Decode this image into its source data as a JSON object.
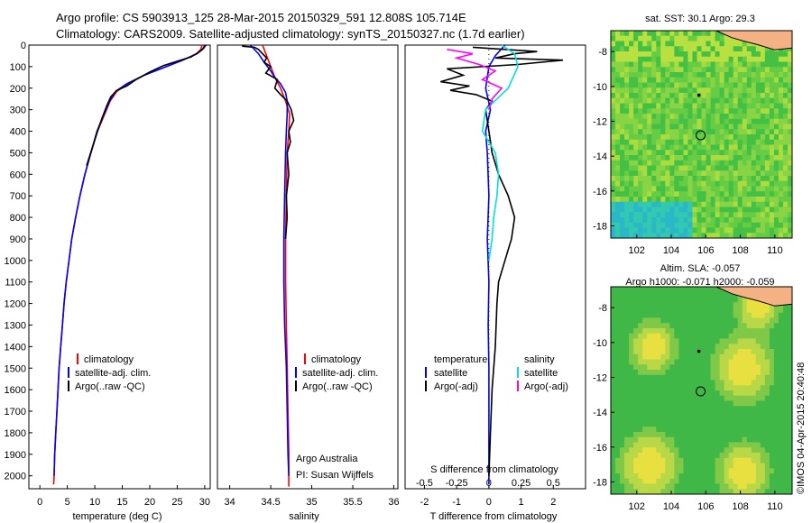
{
  "header": {
    "line1": "Argo profile: CS 5903913_125 28-Mar-2015 20150329_591 12.808S 105.714E",
    "line2": "Climatology: CARS2009. Satellite-adjusted climatology: synTS_20150327.nc (1.7d earlier)"
  },
  "colors": {
    "climatology": "#ff0000",
    "satellite": "#0000ff",
    "argo": "#000000",
    "salinity_satellite": "#00e0e0",
    "salinity_argo": "#ff00ff",
    "land": "#f4b183",
    "sst_sea": "#55c855",
    "sla_sea": "#40c060"
  },
  "depth_axis": {
    "ticks": [
      0,
      100,
      200,
      300,
      400,
      500,
      600,
      700,
      800,
      900,
      1000,
      1100,
      1200,
      1300,
      1400,
      1500,
      1600,
      1700,
      1800,
      1900,
      2000
    ],
    "ylim": [
      0,
      2060
    ]
  },
  "chart_data": [
    {
      "id": "temperature",
      "type": "line",
      "xlabel": "temperature (deg C)",
      "xticks": [
        0,
        5,
        10,
        15,
        20,
        25,
        30
      ],
      "xlim": [
        -2,
        31
      ],
      "legend": {
        "items": [
          "climatology",
          "satellite-adj. clim.",
          "Argo(..raw -QC)"
        ]
      },
      "series": [
        {
          "name": "climatology",
          "color": "#ff0000",
          "points": [
            [
              29.5,
              0
            ],
            [
              29.3,
              20
            ],
            [
              28.5,
              40
            ],
            [
              26,
              70
            ],
            [
              23,
              100
            ],
            [
              19,
              140
            ],
            [
              16,
              180
            ],
            [
              14,
              215
            ],
            [
              12.8,
              260
            ],
            [
              11.8,
              320
            ],
            [
              10.5,
              400
            ],
            [
              9.3,
              500
            ],
            [
              8.2,
              600
            ],
            [
              7.3,
              700
            ],
            [
              6.5,
              800
            ],
            [
              5.8,
              900
            ],
            [
              5.3,
              1000
            ],
            [
              4.8,
              1100
            ],
            [
              4.4,
              1200
            ],
            [
              4.1,
              1300
            ],
            [
              3.8,
              1400
            ],
            [
              3.5,
              1500
            ],
            [
              3.3,
              1600
            ],
            [
              3.1,
              1700
            ],
            [
              2.9,
              1800
            ],
            [
              2.7,
              1900
            ],
            [
              2.6,
              2000
            ],
            [
              2.5,
              2040
            ]
          ]
        },
        {
          "name": "satellite-adj. clim.",
          "color": "#0000ff",
          "points": [
            [
              30,
              0
            ],
            [
              29.6,
              20
            ],
            [
              28.6,
              40
            ],
            [
              26,
              70
            ],
            [
              23,
              100
            ],
            [
              19,
              140
            ],
            [
              15.8,
              180
            ],
            [
              13.8,
              215
            ],
            [
              12.7,
              260
            ],
            [
              11.7,
              320
            ],
            [
              10.4,
              400
            ],
            [
              9.3,
              500
            ],
            [
              8.2,
              600
            ],
            [
              7.3,
              700
            ],
            [
              6.5,
              800
            ],
            [
              5.8,
              900
            ],
            [
              5.3,
              1000
            ],
            [
              4.8,
              1100
            ],
            [
              4.4,
              1200
            ],
            [
              4.1,
              1300
            ],
            [
              3.8,
              1400
            ],
            [
              3.5,
              1500
            ],
            [
              3.3,
              1600
            ],
            [
              3.1,
              1700
            ],
            [
              2.9,
              1800
            ],
            [
              2.7,
              1900
            ],
            [
              2.6,
              2000
            ]
          ]
        },
        {
          "name": "Argo(..raw -QC)",
          "color": "#000000",
          "points": [
            [
              30.2,
              0
            ],
            [
              29.8,
              15
            ],
            [
              28.8,
              35
            ],
            [
              27.5,
              55
            ],
            [
              25,
              75
            ],
            [
              22.5,
              95
            ],
            [
              20,
              125
            ],
            [
              17.5,
              160
            ],
            [
              15.8,
              190
            ],
            [
              14,
              210
            ],
            [
              12.9,
              240
            ],
            [
              12.2,
              280
            ],
            [
              11.3,
              340
            ],
            [
              10.5,
              400
            ],
            [
              9.5,
              480
            ],
            [
              8.5,
              560
            ]
          ]
        }
      ]
    },
    {
      "id": "salinity",
      "type": "line",
      "xlabel": "salinity",
      "xticks": [
        34,
        34.5,
        35,
        35.5,
        36
      ],
      "xlim": [
        33.85,
        36.05
      ],
      "legend": {
        "items": [
          "climatology",
          "satellite-adj. clim.",
          "Argo(..raw -QC)"
        ]
      },
      "notes": [
        "Argo Australia",
        "PI: Susan Wijffels"
      ],
      "series": [
        {
          "name": "climatology",
          "color": "#ff0000",
          "points": [
            [
              34.4,
              0
            ],
            [
              34.45,
              50
            ],
            [
              34.5,
              100
            ],
            [
              34.55,
              150
            ],
            [
              34.62,
              200
            ],
            [
              34.68,
              260
            ],
            [
              34.73,
              320
            ],
            [
              34.72,
              400
            ],
            [
              34.7,
              500
            ],
            [
              34.69,
              700
            ],
            [
              34.68,
              900
            ],
            [
              34.68,
              1100
            ],
            [
              34.69,
              1300
            ],
            [
              34.7,
              1500
            ],
            [
              34.71,
              1700
            ],
            [
              34.72,
              1900
            ],
            [
              34.72,
              2050
            ]
          ]
        },
        {
          "name": "satellite-adj. clim.",
          "color": "#0000ff",
          "points": [
            [
              34.25,
              0
            ],
            [
              34.35,
              40
            ],
            [
              34.42,
              80
            ],
            [
              34.5,
              120
            ],
            [
              34.55,
              150
            ],
            [
              34.62,
              180
            ],
            [
              34.68,
              220
            ],
            [
              34.7,
              260
            ],
            [
              34.7,
              320
            ],
            [
              34.69,
              400
            ],
            [
              34.68,
              500
            ],
            [
              34.67,
              700
            ],
            [
              34.66,
              900
            ],
            [
              34.66,
              1100
            ],
            [
              34.67,
              1300
            ],
            [
              34.69,
              1500
            ],
            [
              34.7,
              1700
            ],
            [
              34.71,
              1900
            ],
            [
              34.72,
              2000
            ]
          ]
        },
        {
          "name": "Argo(..raw -QC)",
          "color": "#000000",
          "points": [
            [
              34.15,
              5
            ],
            [
              34.3,
              10
            ],
            [
              34.35,
              20
            ],
            [
              34.4,
              40
            ],
            [
              34.45,
              60
            ],
            [
              34.42,
              80
            ],
            [
              34.5,
              100
            ],
            [
              34.44,
              130
            ],
            [
              34.58,
              160
            ],
            [
              34.55,
              200
            ],
            [
              34.62,
              230
            ],
            [
              34.7,
              260
            ],
            [
              34.75,
              300
            ],
            [
              34.78,
              350
            ],
            [
              34.72,
              400
            ],
            [
              34.74,
              450
            ],
            [
              34.7,
              500
            ],
            [
              34.72,
              600
            ],
            [
              34.69,
              700
            ],
            [
              34.7,
              800
            ],
            [
              34.68,
              900
            ]
          ]
        }
      ]
    },
    {
      "id": "difference",
      "type": "line",
      "xlabel": "T difference from climatology",
      "top_label": "S difference from climatology",
      "xticks": [
        -2,
        -1,
        0,
        1,
        2
      ],
      "xlim": [
        -2.6,
        3.0
      ],
      "top_ticks": [
        "-0.5",
        "-0.25",
        "0",
        "0.25",
        "0.5"
      ],
      "legend": {
        "headers": [
          "temperature",
          "salinity"
        ],
        "left": [
          "satellite",
          "Argo(-adj)"
        ],
        "right": [
          "satellite",
          "Argo(-adj)"
        ]
      },
      "series": [
        {
          "name": "temperature satellite",
          "color": "#0000ff",
          "points": [
            [
              0.5,
              0
            ],
            [
              0.2,
              50
            ],
            [
              0.0,
              100
            ],
            [
              -0.1,
              200
            ],
            [
              0.05,
              300
            ],
            [
              -0.1,
              400
            ],
            [
              -0.05,
              500
            ],
            [
              0.0,
              700
            ],
            [
              -0.05,
              900
            ],
            [
              0.0,
              1100
            ],
            [
              -0.02,
              1300
            ],
            [
              0.0,
              1500
            ],
            [
              0.0,
              1700
            ],
            [
              0.0,
              1900
            ],
            [
              0.0,
              2040
            ]
          ]
        },
        {
          "name": "temperature Argo(-adj)",
          "color": "#000000",
          "points": [
            [
              -0.5,
              10
            ],
            [
              0.5,
              20
            ],
            [
              1.5,
              30
            ],
            [
              0.8,
              40
            ],
            [
              0.2,
              60
            ],
            [
              2.3,
              70
            ],
            [
              0.9,
              90
            ],
            [
              -1.3,
              110
            ],
            [
              -0.8,
              140
            ],
            [
              -1.5,
              170
            ],
            [
              -0.6,
              190
            ],
            [
              -1.2,
              210
            ],
            [
              -0.4,
              230
            ],
            [
              0.1,
              260
            ],
            [
              -0.1,
              300
            ],
            [
              0.0,
              400
            ],
            [
              0.1,
              500
            ],
            [
              0.3,
              600
            ],
            [
              0.6,
              700
            ],
            [
              0.8,
              800
            ],
            [
              0.7,
              900
            ],
            [
              0.5,
              1000
            ],
            [
              0.3,
              1100
            ],
            [
              0.25,
              1200
            ],
            [
              0.2,
              1400
            ],
            [
              0.1,
              1600
            ],
            [
              0.05,
              1800
            ],
            [
              0.0,
              2000
            ]
          ]
        },
        {
          "name": "salinity satellite",
          "color": "#00e0e0",
          "points": [
            [
              0.4,
              0
            ],
            [
              0.8,
              40
            ],
            [
              0.9,
              100
            ],
            [
              0.6,
              200
            ],
            [
              -0.1,
              300
            ],
            [
              -0.2,
              400
            ],
            [
              0.2,
              500
            ],
            [
              0.3,
              600
            ],
            [
              0.25,
              700
            ],
            [
              0.15,
              800
            ],
            [
              0.1,
              900
            ],
            [
              0.0,
              1000
            ]
          ]
        },
        {
          "name": "salinity Argo(-adj)",
          "color": "#ff00ff",
          "points": [
            [
              -1.3,
              20
            ],
            [
              -0.5,
              40
            ],
            [
              -1.0,
              60
            ],
            [
              -0.3,
              90
            ],
            [
              0.2,
              120
            ],
            [
              -0.2,
              160
            ],
            [
              0.4,
              200
            ],
            [
              0.1,
              250
            ],
            [
              0.0,
              300
            ]
          ]
        }
      ]
    },
    {
      "id": "sst_map",
      "type": "heatmap",
      "title": "sat. SST: 30.1  Argo: 29.3",
      "xticks": [
        102,
        104,
        106,
        108,
        110
      ],
      "yticks": [
        -8,
        -10,
        -12,
        -14,
        -16,
        -18
      ],
      "xlim": [
        100.5,
        111
      ],
      "ylim": [
        -18.7,
        -6.8
      ],
      "markers": [
        [
          105.6,
          -10.5
        ],
        [
          105.7,
          -12.8
        ]
      ]
    },
    {
      "id": "sla_map",
      "type": "heatmap",
      "title": "Altim. SLA: -0.057",
      "subtitle": "Argo h1000: -0.071 h2000: -0.059",
      "xticks": [
        102,
        104,
        106,
        108,
        110
      ],
      "yticks": [
        -8,
        -10,
        -12,
        -14,
        -16,
        -18
      ],
      "xlim": [
        100.5,
        111
      ],
      "ylim": [
        -18.7,
        -6.8
      ],
      "markers": [
        [
          105.6,
          -10.5
        ],
        [
          105.7,
          -12.8
        ]
      ]
    }
  ],
  "credit": "©IMOS 04-Apr-2015 20:40:48"
}
